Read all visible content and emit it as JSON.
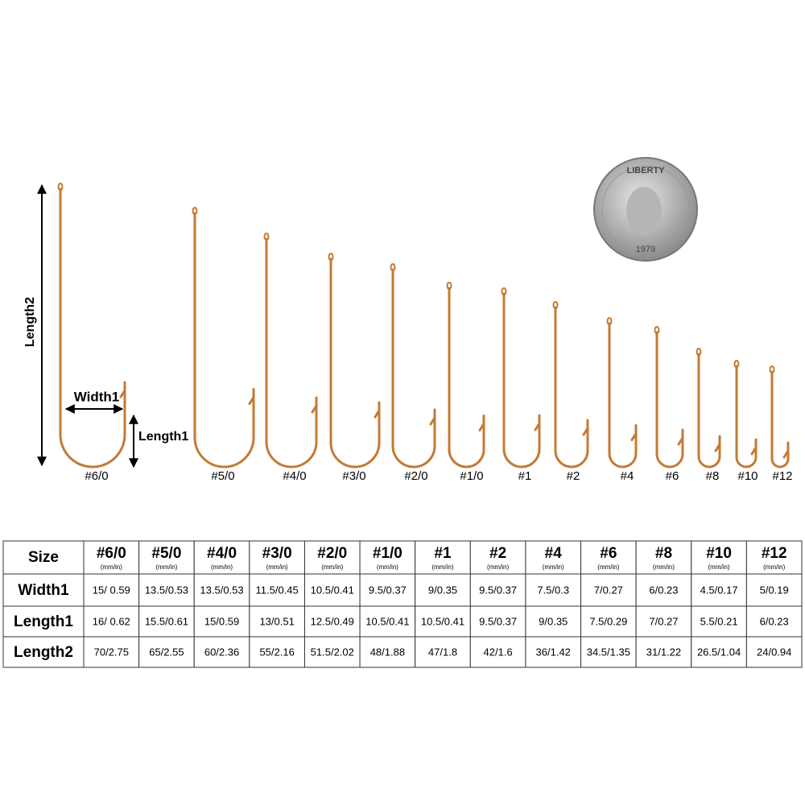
{
  "diagram": {
    "length2": "Length2",
    "width1": "Width1",
    "length1": "Length1",
    "hook_labels": [
      "#6/0",
      "#5/0",
      "#4/0",
      "#3/0",
      "#2/0",
      "#1/0",
      "#1",
      "#2",
      "#4",
      "#6",
      "#8",
      "#10",
      "#12"
    ]
  },
  "coin": {
    "top": "LIBERTY",
    "year": "1979"
  },
  "table": {
    "header": [
      "Size",
      "#6/0",
      "#5/0",
      "#4/0",
      "#3/0",
      "#2/0",
      "#1/0",
      "#1",
      "#2",
      "#4",
      "#6",
      "#8",
      "#10",
      "#12"
    ],
    "unit": "(mm/in)",
    "rows": [
      [
        "Width1",
        "15/ 0.59",
        "13.5/0.53",
        "13.5/0.53",
        "11.5/0.45",
        "10.5/0.41",
        "9.5/0.37",
        "9/0.35",
        "9.5/0.37",
        "7.5/0.3",
        "7/0.27",
        "6/0.23",
        "4.5/0.17",
        "5/0.19"
      ],
      [
        "Length1",
        "16/ 0.62",
        "15.5/0.61",
        "15/0.59",
        "13/0.51",
        "12.5/0.49",
        "10.5/0.41",
        "10.5/0.41",
        "9.5/0.37",
        "9/0.35",
        "7.5/0.29",
        "7/0.27",
        "5.5/0.21",
        "6/0.23"
      ],
      [
        "Length2",
        "70/2.75",
        "65/2.55",
        "60/2.36",
        "55/2.16",
        "51.5/2.02",
        "48/1.88",
        "47/1.8",
        "42/1.6",
        "36/1.42",
        "34.5/1.35",
        "31/1.22",
        "26.5/1.04",
        "24/0.94"
      ]
    ]
  }
}
